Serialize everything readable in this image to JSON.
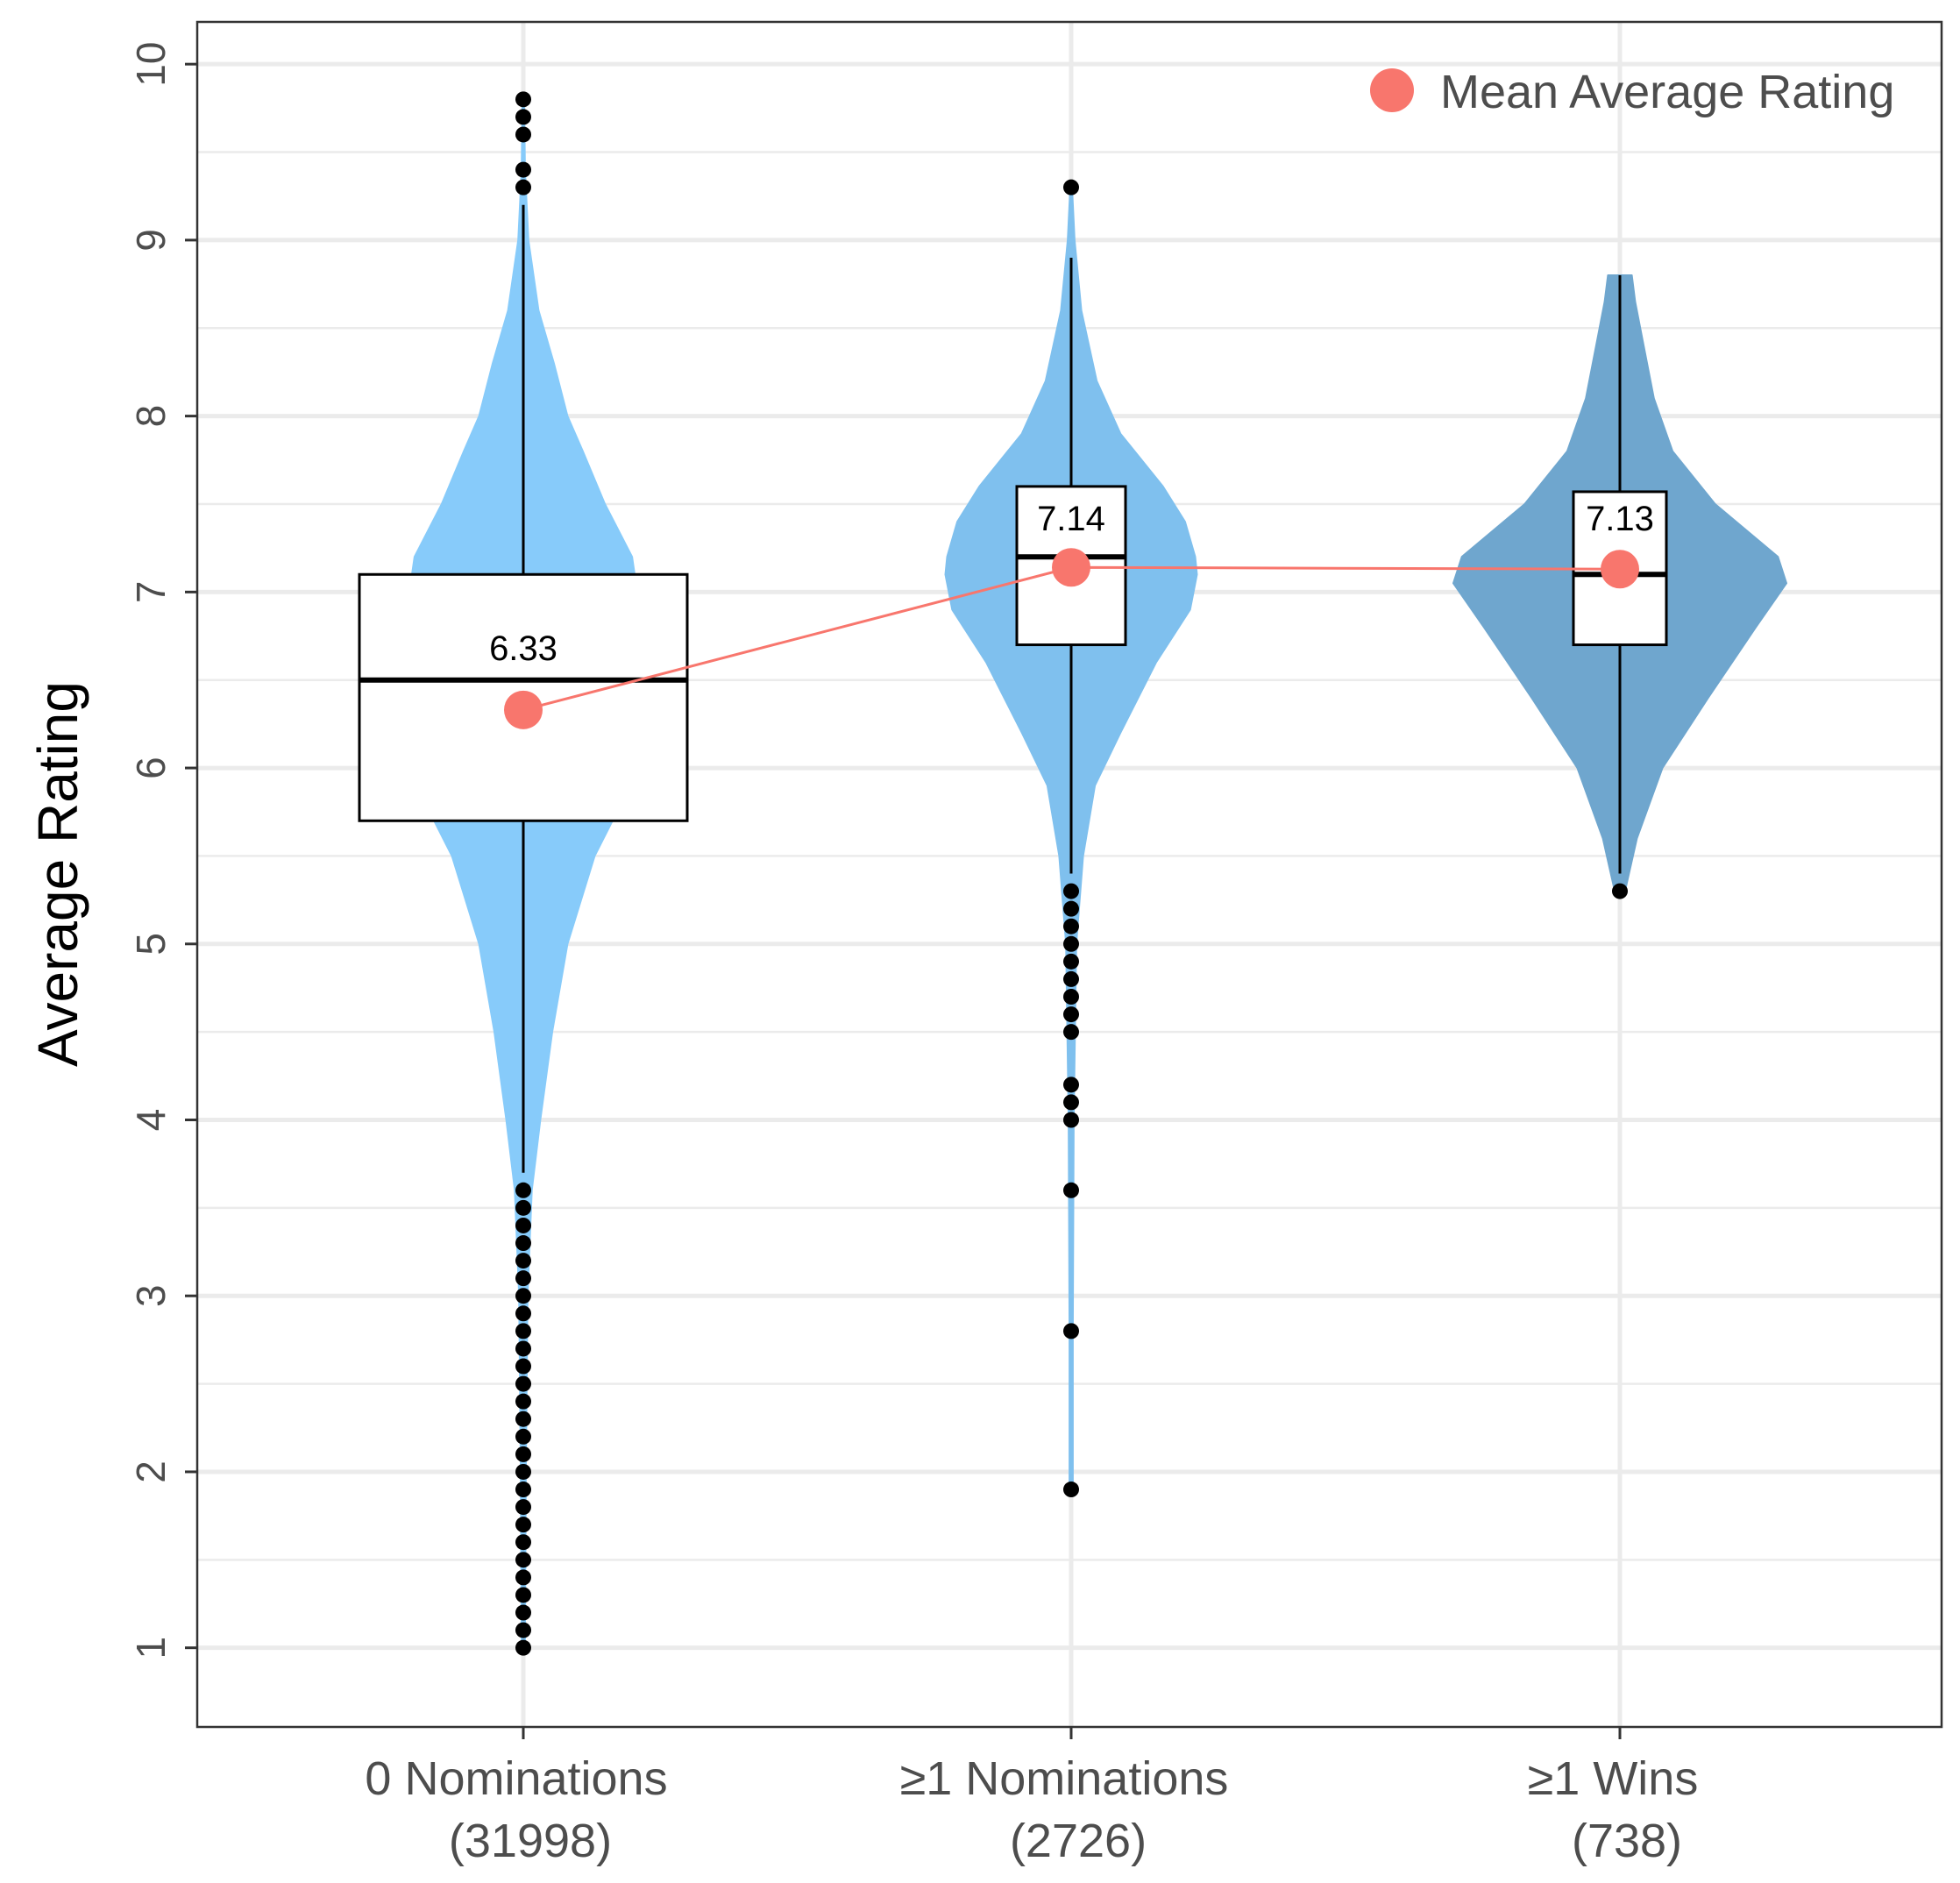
{
  "chart_data": {
    "type": "violin",
    "ylabel": "Average Rating",
    "xlabel": "",
    "ylim": [
      0.55,
      10.24
    ],
    "yticks": [
      1,
      2,
      3,
      4,
      5,
      6,
      7,
      8,
      9,
      10
    ],
    "grid": true,
    "legend": {
      "position": "top-right",
      "entries": [
        {
          "label": "Mean Average Rating",
          "color": "#f8766d"
        }
      ]
    },
    "categories": [
      {
        "label_line1": "0 Nominations",
        "label_line2": "(31998)",
        "n": 31998,
        "violin_color": "#87cbfa",
        "mean": 6.33,
        "mean_label": "6.33",
        "box": {
          "q1": 5.7,
          "median": 6.5,
          "q3": 7.1,
          "whisker_low": 3.7,
          "whisker_high": 9.2
        },
        "outliers": [
          9.8,
          9.7,
          9.6,
          9.4,
          9.3,
          3.6,
          3.5,
          3.4,
          3.3,
          3.2,
          3.1,
          3.0,
          2.9,
          2.8,
          2.7,
          2.6,
          2.5,
          2.4,
          2.3,
          2.2,
          2.1,
          2.0,
          1.9,
          1.8,
          1.7,
          1.6,
          1.5,
          1.4,
          1.3,
          1.2,
          1.1,
          1.0
        ],
        "density": [
          [
            1.0,
            2
          ],
          [
            2.0,
            3
          ],
          [
            3.0,
            5
          ],
          [
            3.6,
            10
          ],
          [
            4.0,
            20
          ],
          [
            4.5,
            34
          ],
          [
            5.0,
            52
          ],
          [
            5.5,
            84
          ],
          [
            5.9,
            126
          ],
          [
            6.2,
            140
          ],
          [
            6.5,
            135
          ],
          [
            6.8,
            132
          ],
          [
            7.0,
            134
          ],
          [
            7.2,
            128
          ],
          [
            7.5,
            96
          ],
          [
            7.8,
            70
          ],
          [
            8.0,
            52
          ],
          [
            8.3,
            36
          ],
          [
            8.6,
            18
          ],
          [
            9.0,
            6
          ],
          [
            9.4,
            2
          ],
          [
            9.8,
            1
          ]
        ]
      },
      {
        "label_line1": "≥1 Nominations",
        "label_line2": "(2726)",
        "n": 2726,
        "violin_color": "#7fc0ee",
        "mean": 7.14,
        "mean_label": "7.14",
        "box": {
          "q1": 6.7,
          "median": 7.2,
          "q3": 7.6,
          "whisker_low": 5.4,
          "whisker_high": 8.9
        },
        "outliers": [
          9.3,
          5.3,
          5.2,
          5.1,
          5.0,
          4.9,
          4.8,
          4.7,
          4.6,
          4.5,
          4.2,
          4.1,
          4.0,
          3.6,
          2.8,
          1.9
        ],
        "density": [
          [
            1.9,
            2
          ],
          [
            2.8,
            2
          ],
          [
            4.0,
            3
          ],
          [
            5.0,
            6
          ],
          [
            5.5,
            14
          ],
          [
            5.9,
            28
          ],
          [
            6.2,
            58
          ],
          [
            6.6,
            100
          ],
          [
            6.9,
            140
          ],
          [
            7.1,
            148
          ],
          [
            7.2,
            146
          ],
          [
            7.4,
            134
          ],
          [
            7.6,
            108
          ],
          [
            7.9,
            58
          ],
          [
            8.2,
            30
          ],
          [
            8.6,
            12
          ],
          [
            9.0,
            4
          ],
          [
            9.3,
            1
          ]
        ]
      },
      {
        "label_line1": "≥1 Wins",
        "label_line2": "(738)",
        "n": 738,
        "violin_color": "#6fa6ce",
        "mean": 7.13,
        "mean_label": "7.13",
        "box": {
          "q1": 6.7,
          "median": 7.1,
          "q3": 7.57,
          "whisker_low": 5.4,
          "whisker_high": 8.8
        },
        "outliers": [
          5.3
        ],
        "density": [
          [
            5.3,
            6
          ],
          [
            5.6,
            20
          ],
          [
            6.0,
            50
          ],
          [
            6.4,
            104
          ],
          [
            6.8,
            160
          ],
          [
            7.05,
            196
          ],
          [
            7.2,
            186
          ],
          [
            7.5,
            112
          ],
          [
            7.8,
            62
          ],
          [
            8.1,
            40
          ],
          [
            8.4,
            28
          ],
          [
            8.65,
            18
          ],
          [
            8.8,
            14
          ]
        ]
      }
    ]
  }
}
